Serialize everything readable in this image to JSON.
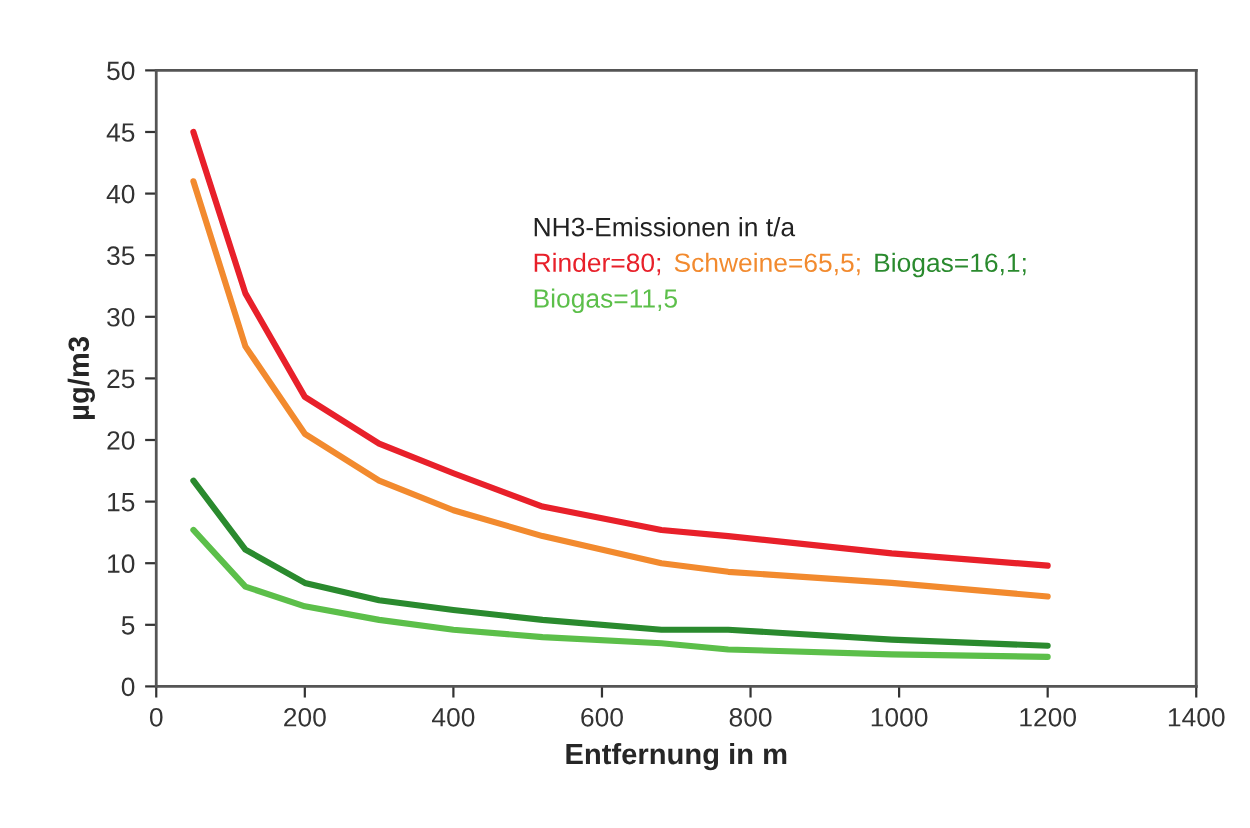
{
  "chart_data": {
    "type": "line",
    "xlabel": "Entfernung in m",
    "ylabel": "µg/m3",
    "legend_title": "NH3-Emissionen in t/a",
    "legend": "top",
    "x": [
      50,
      120,
      200,
      300,
      400,
      520,
      680,
      770,
      990,
      1200
    ],
    "series": [
      {
        "name": "Rinder=80;",
        "color": "#e8202a",
        "values": [
          45,
          31.9,
          23.5,
          19.7,
          17.3,
          14.6,
          12.7,
          12.2,
          10.8,
          9.8
        ]
      },
      {
        "name": "Schweine=65,5;",
        "color": "#f28a2e",
        "values": [
          41,
          27.6,
          20.5,
          16.7,
          14.3,
          12.2,
          10.0,
          9.3,
          8.4,
          7.3
        ]
      },
      {
        "name": "Biogas=16,1;",
        "color": "#2a8a2e",
        "values": [
          16.7,
          11.1,
          8.4,
          7.0,
          6.2,
          5.4,
          4.6,
          4.6,
          3.8,
          3.3
        ]
      },
      {
        "name": "Biogas=11,5",
        "color": "#5cbf4a",
        "values": [
          12.7,
          8.1,
          6.5,
          5.4,
          4.6,
          4.0,
          3.5,
          3.0,
          2.6,
          2.4
        ]
      }
    ],
    "xlim": [
      0,
      1400
    ],
    "xticks": [
      0,
      200,
      400,
      600,
      800,
      1000,
      1200,
      1400
    ],
    "ylim": [
      0,
      50
    ],
    "yticks": [
      0,
      5,
      10,
      15,
      20,
      25,
      30,
      35,
      40,
      45,
      50
    ],
    "grid": false,
    "marker": "none",
    "line_style": "solid"
  }
}
